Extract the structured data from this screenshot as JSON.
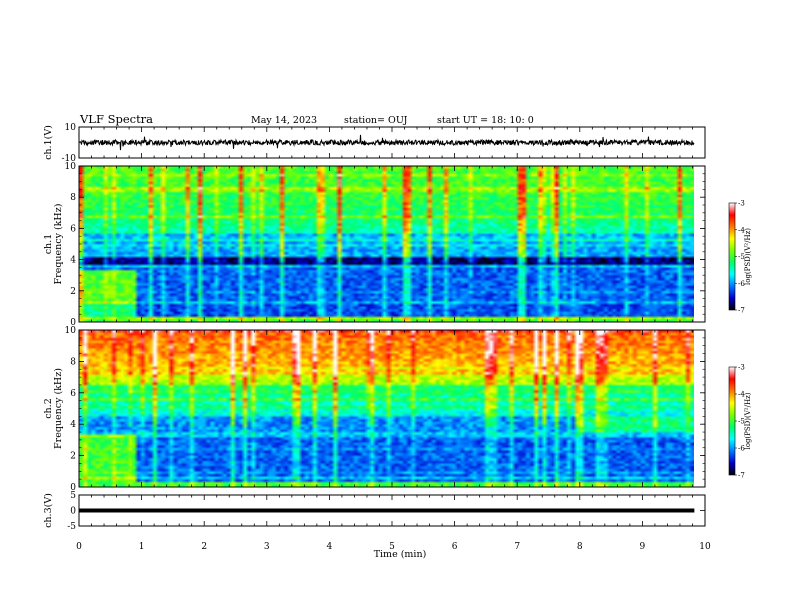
{
  "header": {
    "title": "VLF Spectra",
    "date": "May 14, 2023",
    "station": "station= OUJ",
    "start": "start  UT =   18: 10: 0"
  },
  "chart_data": [
    {
      "type": "line",
      "name": "ch1-waveform",
      "ylabel": "ch.1(V)",
      "ylim": [
        -10,
        10
      ],
      "yticks": [
        "10",
        "-10"
      ],
      "xlim": [
        0,
        10
      ],
      "trace_level": 0,
      "trace_color": "#000000"
    },
    {
      "type": "heatmap",
      "name": "ch1-spectrogram",
      "ylabel": [
        "ch.1",
        "Frequency (kHz)"
      ],
      "ylim": [
        0,
        10
      ],
      "yticks": [
        "0",
        "2",
        "4",
        "6",
        "8",
        "10"
      ],
      "xlim": [
        0,
        10
      ],
      "colorbar": {
        "label": "log(PSD)(V²/Hz)",
        "range": [
          -7,
          -3
        ],
        "ticks": [
          "-3",
          "-4",
          "-5",
          "-6",
          "-7"
        ],
        "colors": [
          "#000000",
          "#0000cc",
          "#0077ff",
          "#00ffff",
          "#00ff66",
          "#77ff00",
          "#ffff00",
          "#ff7700",
          "#ff0000",
          "#ffffff"
        ]
      }
    },
    {
      "type": "heatmap",
      "name": "ch2-spectrogram",
      "ylabel": [
        "ch.2",
        "Frequency (kHz)"
      ],
      "ylim": [
        0,
        10
      ],
      "yticks": [
        "0",
        "2",
        "4",
        "6",
        "8",
        "10"
      ],
      "xlim": [
        0,
        10
      ],
      "colorbar": {
        "label": "log(PSD)(V²/Hz)",
        "range": [
          -7,
          -3
        ],
        "ticks": [
          "-3",
          "-4",
          "-5",
          "-6",
          "-7"
        ],
        "colors": [
          "#000000",
          "#0000cc",
          "#0077ff",
          "#00ffff",
          "#00ff66",
          "#77ff00",
          "#ffff00",
          "#ff7700",
          "#ff0000",
          "#ffffff"
        ]
      }
    },
    {
      "type": "line",
      "name": "ch3-waveform",
      "ylabel": "ch.3(V)",
      "ylim": [
        -5,
        5
      ],
      "yticks": [
        "5",
        "0",
        "-5"
      ],
      "xlim": [
        0,
        10
      ],
      "trace_level": 0,
      "trace_color": "#000000"
    }
  ],
  "xaxis": {
    "label": "Time  (min)",
    "ticks": [
      "0",
      "1",
      "2",
      "3",
      "4",
      "5",
      "6",
      "7",
      "8",
      "9",
      "10"
    ],
    "data_end": 9.83
  }
}
